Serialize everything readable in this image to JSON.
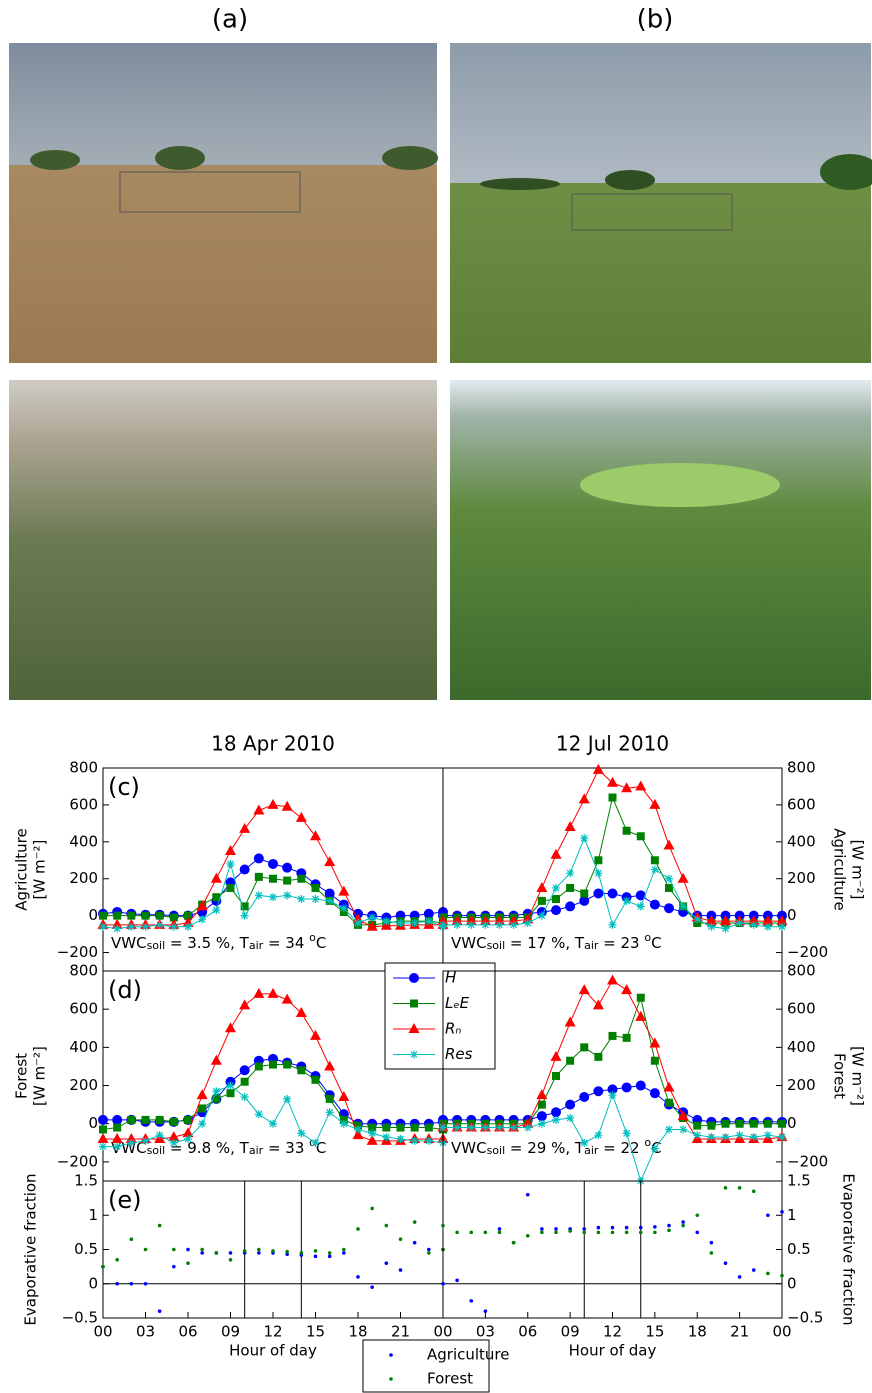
{
  "photos": {
    "labels": [
      "(a)",
      "(b)"
    ]
  },
  "chart_data": [
    {
      "type": "line",
      "title": "18 Apr 2010",
      "panel_label": "(c)",
      "ylabel": [
        "Agriculture",
        "[W m⁻²]"
      ],
      "annotation": [
        "VWC",
        "soil",
        " = 3.5 %, T",
        "air",
        " = 34 ",
        "o",
        "C"
      ],
      "x": [
        0,
        1,
        2,
        3,
        4,
        5,
        6,
        7,
        8,
        9,
        10,
        11,
        12,
        13,
        14,
        15,
        16,
        17,
        18,
        19,
        20,
        21,
        22,
        23,
        24
      ],
      "xlim": [
        0,
        24
      ],
      "ylim": [
        -300,
        800
      ],
      "yticks": [
        {
          "value": -200,
          "label": "−200"
        },
        0,
        200,
        400,
        600,
        800
      ],
      "series": [
        {
          "name": "H",
          "color": "#0000ff",
          "marker": "o",
          "values": [
            10,
            20,
            10,
            5,
            5,
            0,
            0,
            20,
            80,
            180,
            250,
            310,
            280,
            260,
            230,
            170,
            120,
            60,
            10,
            0,
            -10,
            0,
            0,
            10,
            20
          ]
        },
        {
          "name": "LₑE",
          "color": "#008000",
          "marker": "s",
          "values": [
            0,
            0,
            0,
            0,
            0,
            -10,
            0,
            60,
            100,
            150,
            50,
            210,
            200,
            190,
            200,
            150,
            80,
            20,
            -50,
            -50,
            -40,
            -30,
            -30,
            -30,
            -40
          ]
        },
        {
          "name": "Rₙ",
          "color": "#ff0000",
          "marker": "^",
          "values": [
            -50,
            -50,
            -50,
            -50,
            -50,
            -50,
            -40,
            50,
            200,
            350,
            470,
            570,
            600,
            590,
            530,
            430,
            290,
            130,
            -20,
            -60,
            -55,
            -55,
            -50,
            -50,
            -50
          ]
        },
        {
          "name": "Res",
          "color": "#00bfbf",
          "marker": "*",
          "values": [
            -60,
            -70,
            -60,
            -60,
            -50,
            -60,
            -60,
            -20,
            30,
            280,
            0,
            110,
            100,
            110,
            90,
            90,
            80,
            40,
            -40,
            -10,
            -30,
            -40,
            -40,
            -30,
            -60
          ]
        }
      ]
    },
    {
      "type": "line",
      "title": "12 Jul 2010",
      "ylabel": [
        "Agriculture",
        "[W m⁻²]"
      ],
      "annotation": [
        "VWC",
        "soil",
        " = 17 %, T",
        "air",
        " = 23 ",
        "o",
        "C"
      ],
      "x": [
        0,
        1,
        2,
        3,
        4,
        5,
        6,
        7,
        8,
        9,
        10,
        11,
        12,
        13,
        14,
        15,
        16,
        17,
        18,
        19,
        20,
        21,
        22,
        23,
        24
      ],
      "xlim": [
        0,
        24
      ],
      "ylim": [
        -300,
        800
      ],
      "yticks": [
        {
          "value": -200,
          "label": "−200"
        },
        0,
        200,
        400,
        600,
        800
      ],
      "series": [
        {
          "name": "H",
          "color": "#0000ff",
          "marker": "o",
          "values": [
            0,
            0,
            0,
            0,
            0,
            0,
            10,
            20,
            30,
            50,
            80,
            120,
            120,
            100,
            110,
            60,
            40,
            20,
            0,
            0,
            0,
            0,
            0,
            0,
            0
          ]
        },
        {
          "name": "LₑE",
          "color": "#008000",
          "marker": "s",
          "values": [
            -10,
            -10,
            -10,
            -10,
            -10,
            -10,
            -10,
            80,
            90,
            150,
            120,
            300,
            640,
            460,
            430,
            300,
            150,
            50,
            -40,
            -40,
            -40,
            -40,
            -40,
            -40,
            -40
          ]
        },
        {
          "name": "Rₙ",
          "color": "#ff0000",
          "marker": "^",
          "values": [
            -30,
            -30,
            -30,
            -30,
            -30,
            -30,
            -20,
            150,
            330,
            480,
            630,
            790,
            720,
            690,
            700,
            600,
            380,
            200,
            -10,
            -30,
            -30,
            -30,
            -30,
            -30,
            -30
          ]
        },
        {
          "name": "Res",
          "color": "#00bfbf",
          "marker": "*",
          "values": [
            -50,
            -50,
            -50,
            -50,
            -50,
            -50,
            -40,
            0,
            150,
            230,
            420,
            230,
            -50,
            80,
            50,
            250,
            200,
            50,
            -20,
            -60,
            -70,
            -40,
            -50,
            -60,
            -60
          ]
        }
      ]
    },
    {
      "type": "line",
      "panel_label": "(d)",
      "ylabel": [
        "Forest",
        "[W m⁻²]"
      ],
      "legend": true,
      "annotation": [
        "VWC",
        "soil",
        " = 9.8 %, T",
        "air",
        " = 33 ",
        "o",
        "C"
      ],
      "x": [
        0,
        1,
        2,
        3,
        4,
        5,
        6,
        7,
        8,
        9,
        10,
        11,
        12,
        13,
        14,
        15,
        16,
        17,
        18,
        19,
        20,
        21,
        22,
        23,
        24
      ],
      "xlim": [
        0,
        24
      ],
      "ylim": [
        -300,
        800
      ],
      "yticks": [
        {
          "value": -200,
          "label": "−200"
        },
        0,
        200,
        400,
        600,
        800
      ],
      "series": [
        {
          "name": "H",
          "color": "#0000ff",
          "marker": "o",
          "values": [
            20,
            20,
            20,
            10,
            10,
            10,
            20,
            60,
            130,
            220,
            280,
            330,
            340,
            320,
            300,
            250,
            150,
            50,
            0,
            0,
            0,
            0,
            0,
            0,
            10
          ]
        },
        {
          "name": "LₑE",
          "color": "#008000",
          "marker": "s",
          "values": [
            -30,
            -20,
            20,
            20,
            20,
            10,
            20,
            80,
            130,
            160,
            220,
            300,
            310,
            310,
            280,
            230,
            130,
            20,
            -10,
            -20,
            -20,
            -20,
            -20,
            -20,
            -30
          ]
        },
        {
          "name": "Rₙ",
          "color": "#ff0000",
          "marker": "^",
          "values": [
            -80,
            -80,
            -80,
            -80,
            -80,
            -70,
            -50,
            150,
            330,
            500,
            620,
            680,
            680,
            650,
            580,
            460,
            300,
            140,
            -60,
            -90,
            -90,
            -90,
            -80,
            -80,
            -80
          ]
        },
        {
          "name": "Res",
          "color": "#00bfbf",
          "marker": "*",
          "values": [
            -120,
            -120,
            -100,
            -90,
            -60,
            -100,
            -80,
            0,
            170,
            200,
            140,
            50,
            0,
            130,
            -50,
            -100,
            60,
            0,
            -30,
            -50,
            -70,
            -80,
            -90,
            -90,
            -100
          ]
        }
      ]
    },
    {
      "type": "line",
      "ylabel": [
        "Forest",
        "[W m⁻²]"
      ],
      "annotation": [
        "VWC",
        "soil",
        " = 29 %, T",
        "air",
        " = 22 ",
        "o",
        "C"
      ],
      "x": [
        0,
        1,
        2,
        3,
        4,
        5,
        6,
        7,
        8,
        9,
        10,
        11,
        12,
        13,
        14,
        15,
        16,
        17,
        18,
        19,
        20,
        21,
        22,
        23,
        24
      ],
      "xlim": [
        0,
        24
      ],
      "ylim": [
        -300,
        800
      ],
      "yticks": [
        {
          "value": -200,
          "label": "−200"
        },
        0,
        200,
        400,
        600,
        800
      ],
      "series": [
        {
          "name": "H",
          "color": "#0000ff",
          "marker": "o",
          "values": [
            20,
            20,
            20,
            20,
            20,
            20,
            20,
            40,
            60,
            100,
            140,
            170,
            180,
            190,
            200,
            160,
            100,
            60,
            20,
            10,
            10,
            10,
            10,
            10,
            10
          ]
        },
        {
          "name": "LₑE",
          "color": "#008000",
          "marker": "s",
          "values": [
            0,
            0,
            0,
            0,
            0,
            0,
            0,
            100,
            250,
            330,
            400,
            350,
            460,
            450,
            660,
            330,
            110,
            30,
            -10,
            -10,
            0,
            0,
            0,
            0,
            0
          ]
        },
        {
          "name": "Rₙ",
          "color": "#ff0000",
          "marker": "^",
          "values": [
            -20,
            -20,
            -20,
            -20,
            -20,
            -20,
            0,
            150,
            350,
            530,
            700,
            620,
            750,
            700,
            560,
            420,
            190,
            40,
            -80,
            -80,
            -80,
            -80,
            -80,
            -80,
            -70
          ]
        },
        {
          "name": "Res",
          "color": "#00bfbf",
          "marker": "*",
          "values": [
            -20,
            -20,
            -20,
            -20,
            -20,
            -20,
            -20,
            0,
            20,
            30,
            -100,
            -60,
            150,
            -50,
            -300,
            -130,
            -30,
            -30,
            -60,
            -70,
            -70,
            -60,
            -70,
            -60,
            -70
          ]
        }
      ]
    },
    {
      "type": "scatter",
      "panel_label": "(e)",
      "ylabel": [
        "Evaporative fraction"
      ],
      "xlabel": "Hour of day",
      "legend": true,
      "x": [
        0,
        1,
        2,
        3,
        4,
        5,
        6,
        7,
        8,
        9,
        10,
        11,
        12,
        13,
        14,
        15,
        16,
        17,
        18,
        19,
        20,
        21,
        22,
        23,
        24
      ],
      "xlim": [
        0,
        24
      ],
      "ylim": [
        -0.5,
        1.5
      ],
      "yticks": [
        {
          "value": -0.5,
          "label": "−0.5"
        },
        0,
        0.5,
        1,
        1.5
      ],
      "xticks": [
        {
          "value": 0,
          "label": "00"
        },
        {
          "value": 3,
          "label": "03"
        },
        {
          "value": 6,
          "label": "06"
        },
        {
          "value": 9,
          "label": "09"
        },
        12,
        15,
        18,
        21
      ],
      "vlines": [
        10,
        14
      ],
      "hlines": [
        0
      ],
      "series": [
        {
          "name": "Agriculture",
          "color": "#0000ff",
          "values": [
            0.25,
            0,
            0,
            0,
            -0.4,
            0.25,
            0.5,
            0.45,
            0.45,
            0.45,
            0.45,
            0.45,
            0.45,
            0.43,
            0.42,
            0.4,
            0.4,
            0.45,
            0.1,
            -0.05,
            0.3,
            0.2,
            0.6,
            0.5,
            0.5
          ]
        },
        {
          "name": "Forest",
          "color": "#008000",
          "values": [
            0.25,
            0.35,
            0.65,
            0.5,
            0.85,
            0.5,
            0.3,
            0.5,
            0.45,
            0.35,
            0.48,
            0.5,
            0.48,
            0.47,
            0.45,
            0.48,
            0.45,
            0.5,
            0.8,
            1.1,
            0.85,
            0.65,
            0.9,
            0.45,
            0.5
          ]
        }
      ]
    },
    {
      "type": "scatter",
      "ylabel": [
        "Evaporative fraction"
      ],
      "xlabel": "Hour of day",
      "x": [
        0,
        1,
        2,
        3,
        4,
        5,
        6,
        7,
        8,
        9,
        10,
        11,
        12,
        13,
        14,
        15,
        16,
        17,
        18,
        19,
        20,
        21,
        22,
        23,
        24
      ],
      "xlim": [
        0,
        24
      ],
      "ylim": [
        -0.5,
        1.5
      ],
      "yticks": [
        {
          "value": -0.5,
          "label": "−0.5"
        },
        0,
        0.5,
        1,
        1.5
      ],
      "xticks": [
        {
          "value": 0,
          "label": "00"
        },
        {
          "value": 3,
          "label": "03"
        },
        {
          "value": 6,
          "label": "06"
        },
        {
          "value": 9,
          "label": "09"
        },
        12,
        15,
        18,
        21,
        {
          "value": 24,
          "label": "00"
        }
      ],
      "vlines": [
        10,
        14
      ],
      "hlines": [
        0
      ],
      "series": [
        {
          "name": "Agriculture",
          "color": "#0000ff",
          "values": [
            0,
            0.05,
            -0.25,
            -0.4,
            0.8,
            0.6,
            1.3,
            0.8,
            0.8,
            0.8,
            0.8,
            0.82,
            0.82,
            0.82,
            0.82,
            0.83,
            0.85,
            0.9,
            0.75,
            0.6,
            0.3,
            0.1,
            0.2,
            1.0,
            1.05
          ]
        },
        {
          "name": "Forest",
          "color": "#008000",
          "values": [
            0.85,
            0.75,
            0.75,
            0.75,
            0.75,
            0.6,
            0.7,
            0.75,
            0.75,
            0.77,
            0.75,
            0.75,
            0.75,
            0.75,
            0.75,
            0.75,
            0.78,
            0.85,
            1.0,
            0.45,
            1.4,
            1.4,
            1.35,
            0.15,
            0.12
          ]
        }
      ]
    }
  ]
}
